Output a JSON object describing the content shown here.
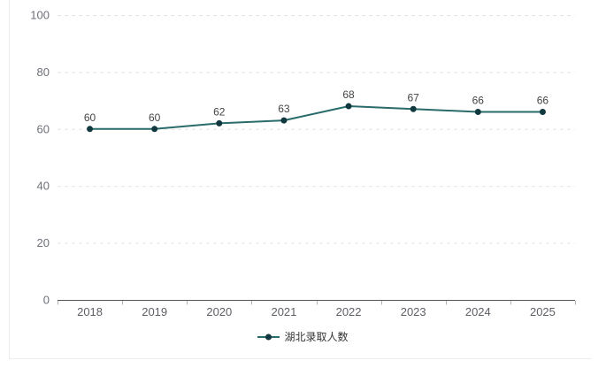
{
  "chart_data": {
    "type": "line",
    "title": "",
    "xlabel": "",
    "ylabel": "",
    "categories": [
      "2018",
      "2019",
      "2020",
      "2021",
      "2022",
      "2023",
      "2024",
      "2025"
    ],
    "series": [
      {
        "name": "湖北录取人数",
        "values": [
          60,
          60,
          62,
          63,
          68,
          67,
          66,
          66
        ]
      }
    ],
    "ylim": [
      0,
      100
    ],
    "y_ticks": [
      0,
      20,
      40,
      60,
      80,
      100
    ],
    "grid": "horizontal-dashed",
    "show_data_labels": true,
    "legend_position": "bottom"
  },
  "colors": {
    "line": "#2a6b6b",
    "marker": "#11383e",
    "grid": "#e4e4e4",
    "axis_line": "#555555",
    "axis_tick": "#b3b3b3",
    "y_tick_label": "#6e7079",
    "x_tick_label": "#5d5f66",
    "data_label": "#444444",
    "legend_text": "#333333",
    "card_border": "#ededed",
    "background": "#ffffff"
  }
}
